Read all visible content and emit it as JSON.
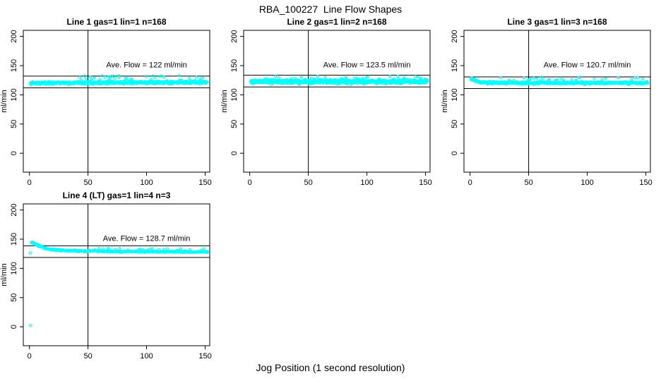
{
  "page": {
    "main_title": "RBA_100227  Line Flow Shapes",
    "x_axis_label": "Jog Position (1 second resolution)",
    "background_color": "#ffffff",
    "point_color": "#00ffff",
    "line_color": "#000000"
  },
  "chart_data": [
    {
      "type": "scatter",
      "title": "Line 1 gas=1 lin=1 n=168",
      "annotation": "Ave. Flow =  122  ml/min",
      "ave_flow": 122,
      "n": 168,
      "ylabel": "ml/min",
      "xticks": [
        0,
        50,
        100,
        150
      ],
      "yticks": [
        0,
        50,
        100,
        150,
        200
      ],
      "xlim": [
        -5.2,
        153.9
      ],
      "ylim": [
        -32.4,
        210.4
      ],
      "vline_x": 50,
      "hlines_y": [
        132,
        112
      ],
      "x_range": [
        1,
        152
      ],
      "mean_profile": [
        [
          1,
          120.0
        ],
        [
          20,
          120.3
        ],
        [
          50,
          120.6
        ],
        [
          100,
          121.0
        ],
        [
          152,
          121.2
        ]
      ],
      "scatter_sd": 1.1,
      "spike": {
        "from_x": 40,
        "rate": 0.08,
        "max": 10
      },
      "outliers": [
        [
          1.5,
          117.0
        ]
      ],
      "passes": 3
    },
    {
      "type": "scatter",
      "title": "Line 2 gas=1 lin=2 n=168",
      "annotation": "Ave. Flow =  123.5  ml/min",
      "ave_flow": 123.5,
      "n": 168,
      "ylabel": "ml/min",
      "xticks": [
        0,
        50,
        100,
        150
      ],
      "yticks": [
        0,
        50,
        100,
        150,
        200
      ],
      "xlim": [
        -5.2,
        153.9
      ],
      "ylim": [
        -32.4,
        210.4
      ],
      "vline_x": 50,
      "hlines_y": [
        133.5,
        113.5
      ],
      "x_range": [
        1,
        152
      ],
      "mean_profile": [
        [
          1,
          122.4
        ],
        [
          152,
          122.7
        ]
      ],
      "scatter_sd": 1.8,
      "spike": {
        "from_x": 20,
        "rate": 0.05,
        "max": 8
      },
      "outliers": [],
      "passes": 3
    },
    {
      "type": "scatter",
      "title": "Line 3 gas=1 lin=3 n=168",
      "annotation": "Ave. Flow =  120.7  ml/min",
      "ave_flow": 120.7,
      "n": 168,
      "ylabel": "ml/min",
      "xticks": [
        0,
        50,
        100,
        150
      ],
      "yticks": [
        0,
        50,
        100,
        150,
        200
      ],
      "xlim": [
        -5.2,
        153.9
      ],
      "ylim": [
        -32.4,
        210.4
      ],
      "vline_x": 50,
      "hlines_y": [
        130.7,
        110.7
      ],
      "x_range": [
        1,
        152
      ],
      "mean_profile": [
        [
          1,
          127.0
        ],
        [
          4,
          124.5
        ],
        [
          8,
          122.0
        ],
        [
          15,
          120.8
        ],
        [
          40,
          120.2
        ],
        [
          152,
          120.6
        ]
      ],
      "scatter_sd": 1.0,
      "spike": {
        "from_x": 25,
        "rate": 0.06,
        "max": 8
      },
      "outliers": [
        [
          1,
          128.5
        ]
      ],
      "passes": 3
    },
    {
      "type": "scatter",
      "title": "Line 4 (LT) gas=1 lin=4 n=3",
      "annotation": "Ave. Flow =  128.7  ml/min",
      "ave_flow": 128.7,
      "n": 3,
      "ylabel": "ml/min",
      "xticks": [
        0,
        50,
        100,
        150
      ],
      "yticks": [
        0,
        50,
        100,
        150,
        200
      ],
      "xlim": [
        -5.2,
        153.9
      ],
      "ylim": [
        -32.4,
        210.4
      ],
      "vline_x": 50,
      "hlines_y": [
        138.7,
        118.7
      ],
      "x_range": [
        2,
        152
      ],
      "mean_profile": [
        [
          2,
          144.5
        ],
        [
          4,
          143.0
        ],
        [
          8,
          138.5
        ],
        [
          15,
          133.5
        ],
        [
          25,
          131.0
        ],
        [
          40,
          129.8
        ],
        [
          70,
          129.0
        ],
        [
          152,
          128.3
        ]
      ],
      "scatter_sd": 0.7,
      "spike": {
        "from_x": 55,
        "rate": 0.1,
        "max": 3.5
      },
      "outliers": [
        [
          1,
          2.0
        ],
        [
          1,
          126.5
        ]
      ],
      "passes": 2
    }
  ]
}
